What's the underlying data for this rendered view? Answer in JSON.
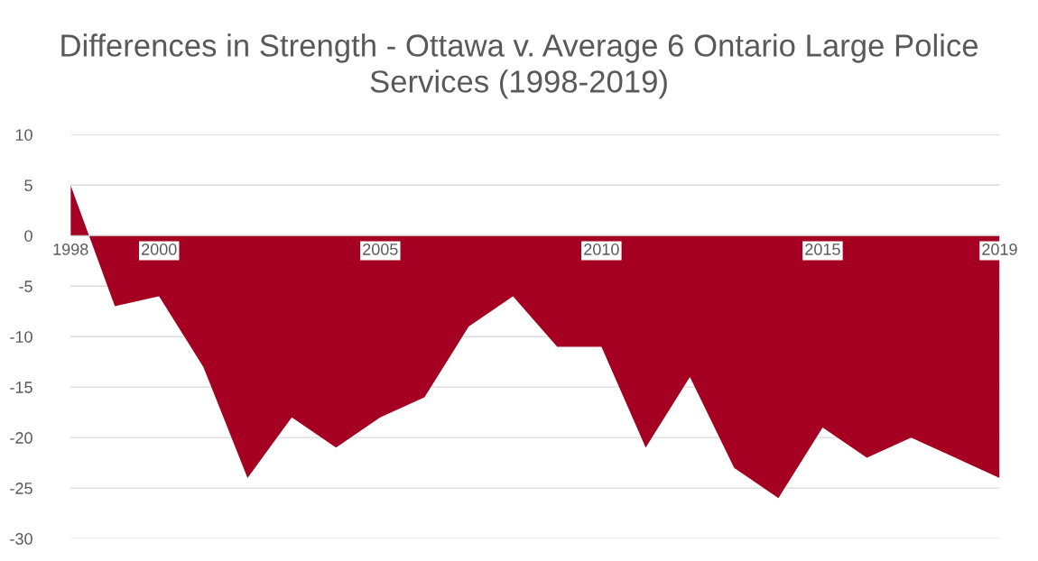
{
  "chart_data": {
    "type": "area",
    "title": "Differences in Strength - Ottawa v. Average 6 Ontario Large Police Services (1998-2019)",
    "x": [
      1998,
      1999,
      2000,
      2001,
      2002,
      2003,
      2004,
      2005,
      2006,
      2007,
      2008,
      2009,
      2010,
      2011,
      2012,
      2013,
      2014,
      2015,
      2016,
      2017,
      2018,
      2019
    ],
    "series": [
      {
        "color": "#a50021",
        "values": [
          5,
          -7,
          -6,
          -13,
          -24,
          -18,
          -21,
          -18,
          -16,
          -9,
          -6,
          -11,
          -11,
          -21,
          -14,
          -23,
          -26,
          -19,
          -22,
          -20,
          -22,
          -24
        ]
      }
    ],
    "xlim": [
      1998,
      2019
    ],
    "xticks": [
      1998,
      2000,
      2005,
      2010,
      2015,
      2019
    ],
    "ylim": [
      -30,
      10
    ],
    "yticks": [
      -30,
      -25,
      -20,
      -15,
      -10,
      -5,
      0,
      5,
      10
    ],
    "grid": "y",
    "legend": false
  }
}
